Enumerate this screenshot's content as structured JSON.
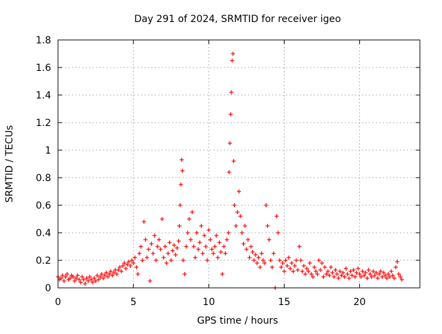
{
  "chart_data": {
    "type": "scatter",
    "title": "Day 291 of 2024, SRMTID for receiver igeo",
    "xlabel": "GPS time / hours",
    "ylabel": "SRMTID / TECUs",
    "xlim": [
      0,
      24
    ],
    "ylim": [
      0,
      1.8
    ],
    "xticks": [
      0,
      5,
      10,
      15,
      20
    ],
    "xtick_labels": [
      "0",
      "5",
      "10",
      "15",
      "20"
    ],
    "yticks": [
      0,
      0.2,
      0.4,
      0.6,
      0.8,
      1.0,
      1.2,
      1.4,
      1.6,
      1.8
    ],
    "ytick_labels": [
      "0",
      "0.2",
      "0.4",
      "0.6",
      "0.8",
      "1",
      "1.2",
      "1.4",
      "1.6",
      "1.8"
    ],
    "grid": true,
    "marker": "+",
    "marker_color": "#ff0000",
    "series": [
      {
        "name": "SRMTID",
        "points": [
          [
            0.0,
            0.08
          ],
          [
            0.1,
            0.06
          ],
          [
            0.2,
            0.07
          ],
          [
            0.3,
            0.09
          ],
          [
            0.4,
            0.05
          ],
          [
            0.5,
            0.08
          ],
          [
            0.6,
            0.1
          ],
          [
            0.7,
            0.06
          ],
          [
            0.8,
            0.07
          ],
          [
            0.9,
            0.09
          ],
          [
            1.0,
            0.08
          ],
          [
            1.1,
            0.05
          ],
          [
            1.2,
            0.07
          ],
          [
            1.3,
            0.09
          ],
          [
            1.4,
            0.06
          ],
          [
            1.5,
            0.04
          ],
          [
            1.6,
            0.08
          ],
          [
            1.7,
            0.06
          ],
          [
            1.8,
            0.03
          ],
          [
            1.9,
            0.07
          ],
          [
            2.0,
            0.05
          ],
          [
            2.1,
            0.08
          ],
          [
            2.2,
            0.06
          ],
          [
            2.3,
            0.04
          ],
          [
            2.4,
            0.07
          ],
          [
            2.5,
            0.05
          ],
          [
            2.6,
            0.09
          ],
          [
            2.7,
            0.06
          ],
          [
            2.8,
            0.08
          ],
          [
            2.9,
            0.1
          ],
          [
            3.0,
            0.07
          ],
          [
            3.1,
            0.09
          ],
          [
            3.2,
            0.11
          ],
          [
            3.3,
            0.08
          ],
          [
            3.4,
            0.1
          ],
          [
            3.5,
            0.12
          ],
          [
            3.6,
            0.09
          ],
          [
            3.7,
            0.11
          ],
          [
            3.8,
            0.13
          ],
          [
            3.9,
            0.1
          ],
          [
            4.0,
            0.13
          ],
          [
            4.1,
            0.15
          ],
          [
            4.2,
            0.12
          ],
          [
            4.3,
            0.16
          ],
          [
            4.4,
            0.18
          ],
          [
            4.5,
            0.14
          ],
          [
            4.6,
            0.17
          ],
          [
            4.7,
            0.19
          ],
          [
            4.8,
            0.16
          ],
          [
            4.9,
            0.2
          ],
          [
            5.0,
            0.18
          ],
          [
            5.1,
            0.22
          ],
          [
            5.2,
            0.15
          ],
          [
            5.3,
            0.1
          ],
          [
            5.4,
            0.25
          ],
          [
            5.5,
            0.3
          ],
          [
            5.6,
            0.2
          ],
          [
            5.7,
            0.48
          ],
          [
            5.8,
            0.35
          ],
          [
            5.9,
            0.22
          ],
          [
            6.0,
            0.28
          ],
          [
            6.1,
            0.05
          ],
          [
            6.2,
            0.32
          ],
          [
            6.3,
            0.25
          ],
          [
            6.4,
            0.38
          ],
          [
            6.5,
            0.2
          ],
          [
            6.6,
            0.3
          ],
          [
            6.7,
            0.35
          ],
          [
            6.8,
            0.28
          ],
          [
            6.9,
            0.5
          ],
          [
            7.0,
            0.22
          ],
          [
            7.1,
            0.3
          ],
          [
            7.2,
            0.18
          ],
          [
            7.3,
            0.25
          ],
          [
            7.4,
            0.33
          ],
          [
            7.5,
            0.2
          ],
          [
            7.6,
            0.27
          ],
          [
            7.7,
            0.31
          ],
          [
            7.8,
            0.24
          ],
          [
            7.9,
            0.29
          ],
          [
            8.0,
            0.34
          ],
          [
            8.05,
            0.45
          ],
          [
            8.1,
            0.6
          ],
          [
            8.15,
            0.75
          ],
          [
            8.2,
            0.93
          ],
          [
            8.25,
            0.85
          ],
          [
            8.3,
            0.2
          ],
          [
            8.4,
            0.1
          ],
          [
            8.5,
            0.3
          ],
          [
            8.6,
            0.4
          ],
          [
            8.7,
            0.5
          ],
          [
            8.8,
            0.35
          ],
          [
            8.9,
            0.55
          ],
          [
            9.0,
            0.3
          ],
          [
            9.1,
            0.22
          ],
          [
            9.2,
            0.4
          ],
          [
            9.3,
            0.28
          ],
          [
            9.4,
            0.33
          ],
          [
            9.5,
            0.45
          ],
          [
            9.6,
            0.25
          ],
          [
            9.7,
            0.38
          ],
          [
            9.8,
            0.3
          ],
          [
            9.9,
            0.2
          ],
          [
            10.0,
            0.42
          ],
          [
            10.1,
            0.35
          ],
          [
            10.2,
            0.28
          ],
          [
            10.3,
            0.25
          ],
          [
            10.4,
            0.3
          ],
          [
            10.5,
            0.38
          ],
          [
            10.6,
            0.22
          ],
          [
            10.7,
            0.33
          ],
          [
            10.8,
            0.26
          ],
          [
            10.9,
            0.1
          ],
          [
            11.0,
            0.3
          ],
          [
            11.1,
            0.25
          ],
          [
            11.2,
            0.35
          ],
          [
            11.3,
            0.4
          ],
          [
            11.35,
            0.84
          ],
          [
            11.4,
            1.05
          ],
          [
            11.45,
            1.26
          ],
          [
            11.5,
            1.42
          ],
          [
            11.55,
            1.65
          ],
          [
            11.6,
            1.7
          ],
          [
            11.65,
            0.92
          ],
          [
            11.7,
            0.6
          ],
          [
            11.8,
            0.45
          ],
          [
            11.9,
            0.55
          ],
          [
            12.0,
            0.7
          ],
          [
            12.1,
            0.52
          ],
          [
            12.2,
            0.4
          ],
          [
            12.3,
            0.32
          ],
          [
            12.4,
            0.45
          ],
          [
            12.5,
            0.28
          ],
          [
            12.6,
            0.35
          ],
          [
            12.7,
            0.22
          ],
          [
            12.8,
            0.3
          ],
          [
            12.9,
            0.26
          ],
          [
            13.0,
            0.2
          ],
          [
            13.1,
            0.24
          ],
          [
            13.2,
            0.18
          ],
          [
            13.3,
            0.22
          ],
          [
            13.4,
            0.15
          ],
          [
            13.5,
            0.25
          ],
          [
            13.6,
            0.2
          ],
          [
            13.7,
            0.18
          ],
          [
            13.8,
            0.6
          ],
          [
            13.9,
            0.45
          ],
          [
            14.0,
            0.35
          ],
          [
            14.1,
            0.2
          ],
          [
            14.2,
            0.15
          ],
          [
            14.3,
            0.25
          ],
          [
            14.4,
            0.0
          ],
          [
            14.5,
            0.52
          ],
          [
            14.6,
            0.4
          ],
          [
            14.7,
            0.2
          ],
          [
            14.8,
            0.15
          ],
          [
            14.9,
            0.18
          ],
          [
            15.0,
            0.12
          ],
          [
            15.1,
            0.2
          ],
          [
            15.2,
            0.16
          ],
          [
            15.3,
            0.22
          ],
          [
            15.4,
            0.14
          ],
          [
            15.5,
            0.18
          ],
          [
            15.6,
            0.12
          ],
          [
            15.7,
            0.16
          ],
          [
            15.8,
            0.2
          ],
          [
            15.9,
            0.13
          ],
          [
            16.0,
            0.3
          ],
          [
            16.1,
            0.2
          ],
          [
            16.2,
            0.12
          ],
          [
            16.3,
            0.16
          ],
          [
            16.4,
            0.1
          ],
          [
            16.5,
            0.14
          ],
          [
            16.6,
            0.12
          ],
          [
            16.7,
            0.18
          ],
          [
            16.8,
            0.1
          ],
          [
            16.9,
            0.08
          ],
          [
            17.0,
            0.15
          ],
          [
            17.1,
            0.12
          ],
          [
            17.2,
            0.1
          ],
          [
            17.3,
            0.2
          ],
          [
            17.4,
            0.13
          ],
          [
            17.5,
            0.18
          ],
          [
            17.6,
            0.08
          ],
          [
            17.7,
            0.15
          ],
          [
            17.8,
            0.1
          ],
          [
            17.9,
            0.12
          ],
          [
            18.0,
            0.09
          ],
          [
            18.1,
            0.15
          ],
          [
            18.2,
            0.11
          ],
          [
            18.3,
            0.08
          ],
          [
            18.4,
            0.13
          ],
          [
            18.5,
            0.1
          ],
          [
            18.6,
            0.07
          ],
          [
            18.7,
            0.12
          ],
          [
            18.8,
            0.09
          ],
          [
            18.9,
            0.11
          ],
          [
            19.0,
            0.08
          ],
          [
            19.1,
            0.14
          ],
          [
            19.2,
            0.1
          ],
          [
            19.3,
            0.07
          ],
          [
            19.4,
            0.12
          ],
          [
            19.5,
            0.09
          ],
          [
            19.6,
            0.13
          ],
          [
            19.7,
            0.08
          ],
          [
            19.8,
            0.11
          ],
          [
            19.9,
            0.14
          ],
          [
            20.0,
            0.1
          ],
          [
            20.1,
            0.08
          ],
          [
            20.2,
            0.12
          ],
          [
            20.3,
            0.09
          ],
          [
            20.4,
            0.11
          ],
          [
            20.5,
            0.07
          ],
          [
            20.6,
            0.13
          ],
          [
            20.7,
            0.1
          ],
          [
            20.8,
            0.08
          ],
          [
            20.9,
            0.12
          ],
          [
            21.0,
            0.09
          ],
          [
            21.1,
            0.11
          ],
          [
            21.2,
            0.07
          ],
          [
            21.3,
            0.1
          ],
          [
            21.4,
            0.12
          ],
          [
            21.5,
            0.08
          ],
          [
            21.6,
            0.11
          ],
          [
            21.7,
            0.09
          ],
          [
            21.8,
            0.07
          ],
          [
            21.9,
            0.1
          ],
          [
            22.0,
            0.08
          ],
          [
            22.1,
            0.12
          ],
          [
            22.2,
            0.09
          ],
          [
            22.3,
            0.07
          ],
          [
            22.4,
            0.15
          ],
          [
            22.5,
            0.19
          ],
          [
            22.6,
            0.1
          ],
          [
            22.7,
            0.08
          ],
          [
            22.8,
            0.06
          ]
        ]
      }
    ]
  }
}
